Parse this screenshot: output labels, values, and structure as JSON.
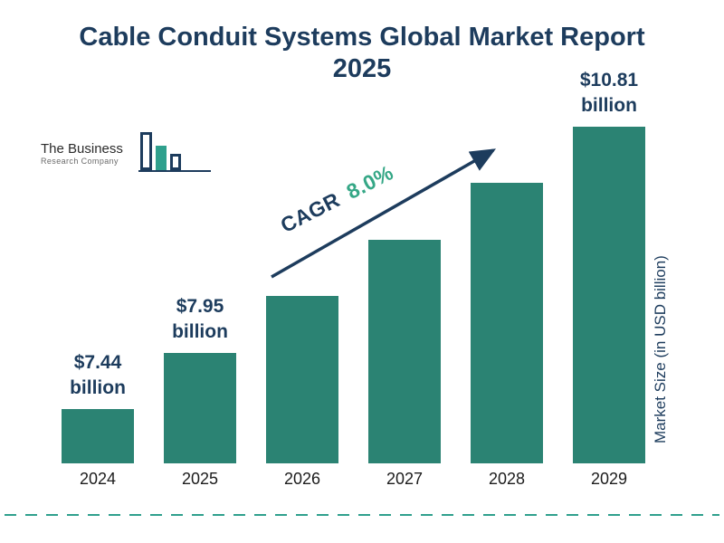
{
  "header": {
    "title_line1": "Cable Conduit Systems Global Market Report",
    "title_line2": "2025"
  },
  "logo": {
    "line1": "The Business",
    "line2": "Research Company"
  },
  "chart_data": {
    "type": "bar",
    "title": "Cable Conduit Systems Global Market Report 2025",
    "categories": [
      "2024",
      "2025",
      "2026",
      "2027",
      "2028",
      "2029"
    ],
    "values": [
      7.44,
      7.95,
      8.59,
      9.27,
      10.01,
      10.81
    ],
    "value_labels": [
      {
        "amount": "$7.44",
        "unit": "billion",
        "visible": true
      },
      {
        "amount": "$7.95",
        "unit": "billion",
        "visible": true
      },
      {
        "amount": "",
        "unit": "",
        "visible": false
      },
      {
        "amount": "",
        "unit": "",
        "visible": false
      },
      {
        "amount": "",
        "unit": "",
        "visible": false
      },
      {
        "amount": "$10.81",
        "unit": "billion",
        "visible": true
      }
    ],
    "unit": "USD billion",
    "xlabel": "",
    "ylabel": "Market Size (in USD billion)",
    "legend": false,
    "grid": false,
    "annotation": {
      "cagr_label": "CAGR",
      "cagr_value": "8.0%"
    },
    "colors": {
      "bar": "#2b8373",
      "title": "#1d3c5d",
      "cagr_label": "#1d3c5d",
      "cagr_value": "#35a786",
      "arrow": "#1d3c5d",
      "dashed_line": "#2fa08d",
      "logo_bar_fill": "#2fa08d"
    }
  }
}
